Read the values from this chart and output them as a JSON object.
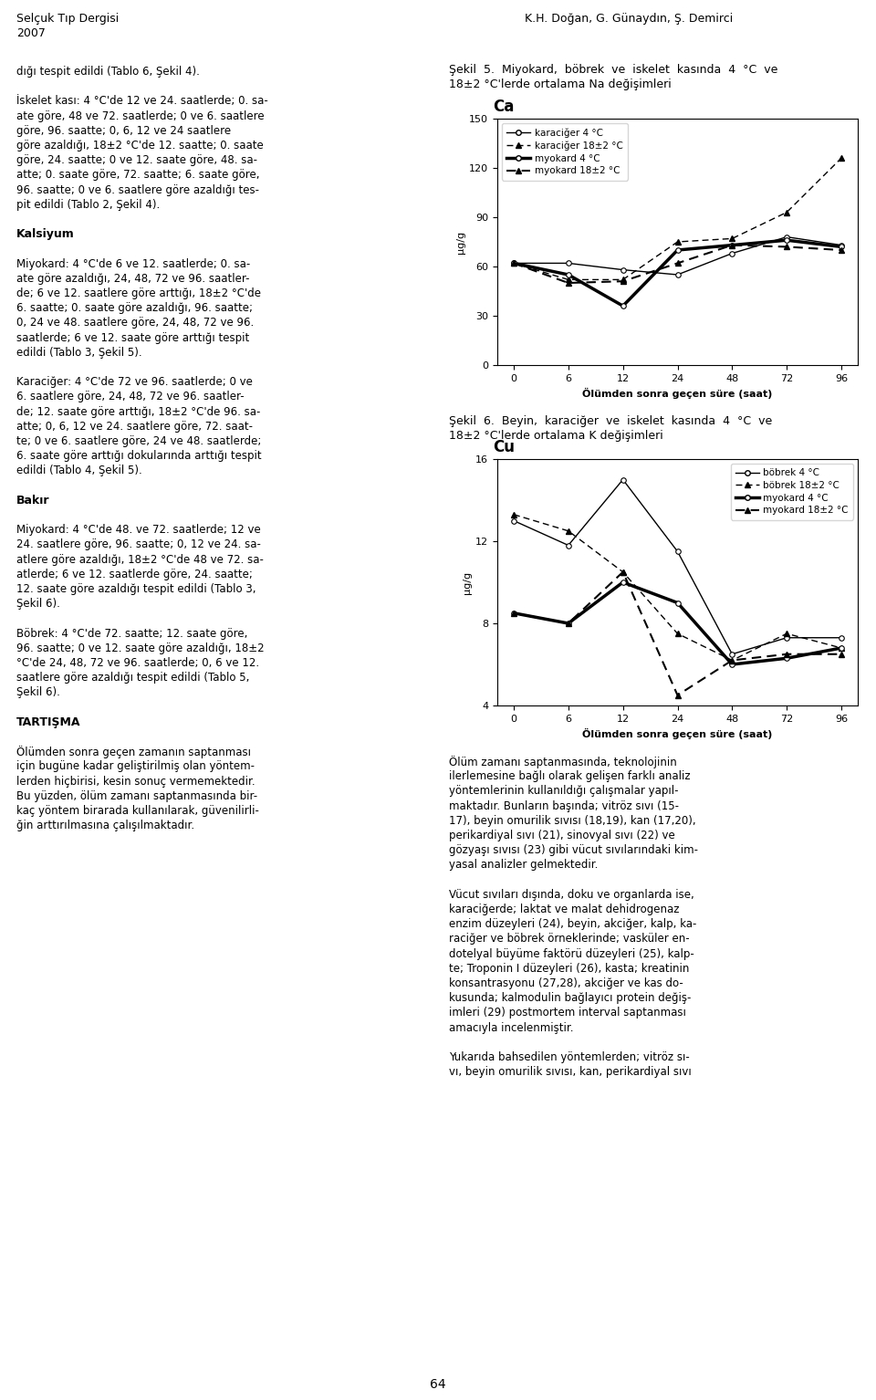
{
  "chart1_title": "Ca",
  "chart2_title": "Cu",
  "xlabel": "Ölümden sonra geçen süre (saat)",
  "ylabel": "µg/g",
  "x_ticks": [
    0,
    6,
    12,
    24,
    48,
    72,
    96
  ],
  "chart1": {
    "karaciger_4": [
      62,
      62,
      58,
      55,
      68,
      78,
      73
    ],
    "karaciger_18": [
      62,
      52,
      52,
      75,
      77,
      93,
      126
    ],
    "myokard_4": [
      62,
      55,
      36,
      70,
      73,
      76,
      72
    ],
    "myokard_18": [
      62,
      50,
      51,
      62,
      73,
      72,
      70
    ]
  },
  "chart1_ylim": [
    0,
    150
  ],
  "chart1_yticks": [
    0,
    30,
    60,
    90,
    120,
    150
  ],
  "chart2": {
    "bobrek_4": [
      13.0,
      11.8,
      15.0,
      11.5,
      6.5,
      7.3,
      7.3
    ],
    "bobrek_18": [
      13.3,
      12.5,
      10.5,
      7.5,
      6.2,
      7.5,
      6.8
    ],
    "myokard_4": [
      8.5,
      8.0,
      10.0,
      9.0,
      6.0,
      6.3,
      6.8
    ],
    "myokard_18": [
      8.5,
      8.0,
      10.5,
      4.5,
      6.2,
      6.5,
      6.5
    ]
  },
  "chart2_ylim": [
    4,
    16
  ],
  "chart2_yticks": [
    4,
    8,
    12,
    16
  ],
  "header_left1": "Selçuk Tıp Dergisi",
  "header_left2": "2007",
  "header_right": "K.H. Doğan, G. Günaydın, Ş. Demirci",
  "sekil5_line1": "Şekil  5.  Miyokard,  böbrek  ve  iskelet  kasında  4  °C  ve",
  "sekil5_line2": "18±2 °C'lerde ortalama Na değişimleri",
  "sekil6_line1": "Şekil  6.  Beyin,  karaciğer  ve  iskelet  kasında  4  °C  ve",
  "sekil6_line2": "18±2 °C'lerde ortalama K değişimleri",
  "legend1": [
    "karaciğer 4 °C",
    "karaciğer 18±2 °C",
    "myokard 4 °C",
    "myokard 18±2 °C"
  ],
  "legend2": [
    "böbrek 4 °C",
    "böbrek 18±2 °C",
    "myokard 4 °C",
    "myokard 18±2 °C"
  ],
  "left_col": [
    [
      "normal",
      "dığı tespit edildi (Tablo 6, Şekil 4)."
    ],
    [
      "normal",
      ""
    ],
    [
      "normal",
      "İskelet kası: 4 °C'de 12 ve 24. saatlerde; 0. sa-"
    ],
    [
      "normal",
      "ate göre, 48 ve 72. saatlerde; 0 ve 6. saatlere"
    ],
    [
      "normal",
      "göre, 96. saatte; 0, 6, 12 ve 24 saatlere"
    ],
    [
      "normal",
      "göre azaldığı, 18±2 °C'de 12. saatte; 0. saate"
    ],
    [
      "normal",
      "göre, 24. saatte; 0 ve 12. saate göre, 48. sa-"
    ],
    [
      "normal",
      "atte; 0. saate göre, 72. saatte; 6. saate göre,"
    ],
    [
      "normal",
      "96. saatte; 0 ve 6. saatlere göre azaldığı tes-"
    ],
    [
      "normal",
      "pit edildi (Tablo 2, Şekil 4)."
    ],
    [
      "normal",
      ""
    ],
    [
      "bold",
      "Kalsiyum"
    ],
    [
      "normal",
      ""
    ],
    [
      "normal",
      "Miyokard: 4 °C'de 6 ve 12. saatlerde; 0. sa-"
    ],
    [
      "normal",
      "ate göre azaldığı, 24, 48, 72 ve 96. saatler-"
    ],
    [
      "normal",
      "de; 6 ve 12. saatlere göre arttığı, 18±2 °C'de"
    ],
    [
      "normal",
      "6. saatte; 0. saate göre azaldığı, 96. saatte;"
    ],
    [
      "normal",
      "0, 24 ve 48. saatlere göre, 24, 48, 72 ve 96."
    ],
    [
      "normal",
      "saatlerde; 6 ve 12. saate göre arttığı tespit"
    ],
    [
      "normal",
      "edildi (Tablo 3, Şekil 5)."
    ],
    [
      "normal",
      ""
    ],
    [
      "normal",
      "Karaciğer: 4 °C'de 72 ve 96. saatlerde; 0 ve"
    ],
    [
      "normal",
      "6. saatlere göre, 24, 48, 72 ve 96. saatler-"
    ],
    [
      "normal",
      "de; 12. saate göre arttığı, 18±2 °C'de 96. sa-"
    ],
    [
      "normal",
      "atte; 0, 6, 12 ve 24. saatlere göre, 72. saat-"
    ],
    [
      "normal",
      "te; 0 ve 6. saatlere göre, 24 ve 48. saatlerde;"
    ],
    [
      "normal",
      "6. saate göre arttığı dokularında arttığı tespit"
    ],
    [
      "normal",
      "edildi (Tablo 4, Şekil 5)."
    ],
    [
      "normal",
      ""
    ],
    [
      "bold",
      "Bakır"
    ],
    [
      "normal",
      ""
    ],
    [
      "normal",
      "Miyokard: 4 °C'de 48. ve 72. saatlerde; 12 ve"
    ],
    [
      "normal",
      "24. saatlere göre, 96. saatte; 0, 12 ve 24. sa-"
    ],
    [
      "normal",
      "atlere göre azaldığı, 18±2 °C'de 48 ve 72. sa-"
    ],
    [
      "normal",
      "atlerde; 6 ve 12. saatlerde göre, 24. saatte;"
    ],
    [
      "normal",
      "12. saate göre azaldığı tespit edildi (Tablo 3,"
    ],
    [
      "normal",
      "Şekil 6)."
    ],
    [
      "normal",
      ""
    ],
    [
      "normal",
      "Böbrek: 4 °C'de 72. saatte; 12. saate göre,"
    ],
    [
      "normal",
      "96. saatte; 0 ve 12. saate göre azaldığı, 18±2"
    ],
    [
      "normal",
      "°C'de 24, 48, 72 ve 96. saatlerde; 0, 6 ve 12."
    ],
    [
      "normal",
      "saatlere göre azaldığı tespit edildi (Tablo 5,"
    ],
    [
      "normal",
      "Şekil 6)."
    ],
    [
      "normal",
      ""
    ],
    [
      "bold",
      "TARTIŞMA"
    ],
    [
      "normal",
      ""
    ],
    [
      "normal",
      "Ölümden sonra geçen zamanın saptanması"
    ],
    [
      "normal",
      "için bugüne kadar geliştirilmiş olan yöntem-"
    ],
    [
      "normal",
      "lerden hiçbirisi, kesin sonuç vermemektedir."
    ],
    [
      "normal",
      "Bu yüzden, ölüm zamanı saptanmasında bir-"
    ],
    [
      "normal",
      "kaç yöntem birarada kullanılarak, güvenilirli-"
    ],
    [
      "normal",
      "ğin arttırılmasına çalışılmaktadır."
    ]
  ],
  "right_bottom_col": [
    "Ölüm zamanı saptanmasında, teknolojinin",
    "ilerlemesine bağlı olarak gelişen farklı analiz",
    "yöntemlerinin kullanıldığı çalışmalar yapıl-",
    "maktadır. Bunların başında; vitröz sıvı (15-",
    "17), beyin omurilik sıvısı (18,19), kan (17,20),",
    "perikardiyal sıvı (21), sinovyal sıvı (22) ve",
    "gözyaşı sıvısı (23) gibi vücut sıvılarındaki kim-",
    "yasal analizler gelmektedir.",
    "",
    "Vücut sıvıları dışında, doku ve organlarda ise,",
    "karaciğerde; laktat ve malat dehidrogenaz",
    "enzim düzeyleri (24), beyin, akciğer, kalp, ka-",
    "raciğer ve böbrek örneklerinde; vasküler en-",
    "dotelyal büyüme faktörü düzeyleri (25), kalp-",
    "te; Troponin I düzeyleri (26), kasta; kreatinin",
    "konsantrasyonu (27,28), akciğer ve kas do-",
    "kusunda; kalmodulin bağlayıcı protein değiş-",
    "imleri (29) postmortem interval saptanması",
    "amacıyla incelenmiştir.",
    "",
    "Yukarıda bahsedilen yöntemlerden; vitröz sı-",
    "vı, beyin omurilik sıvısı, kan, perikardiyal sıvı"
  ],
  "page_num": "64"
}
